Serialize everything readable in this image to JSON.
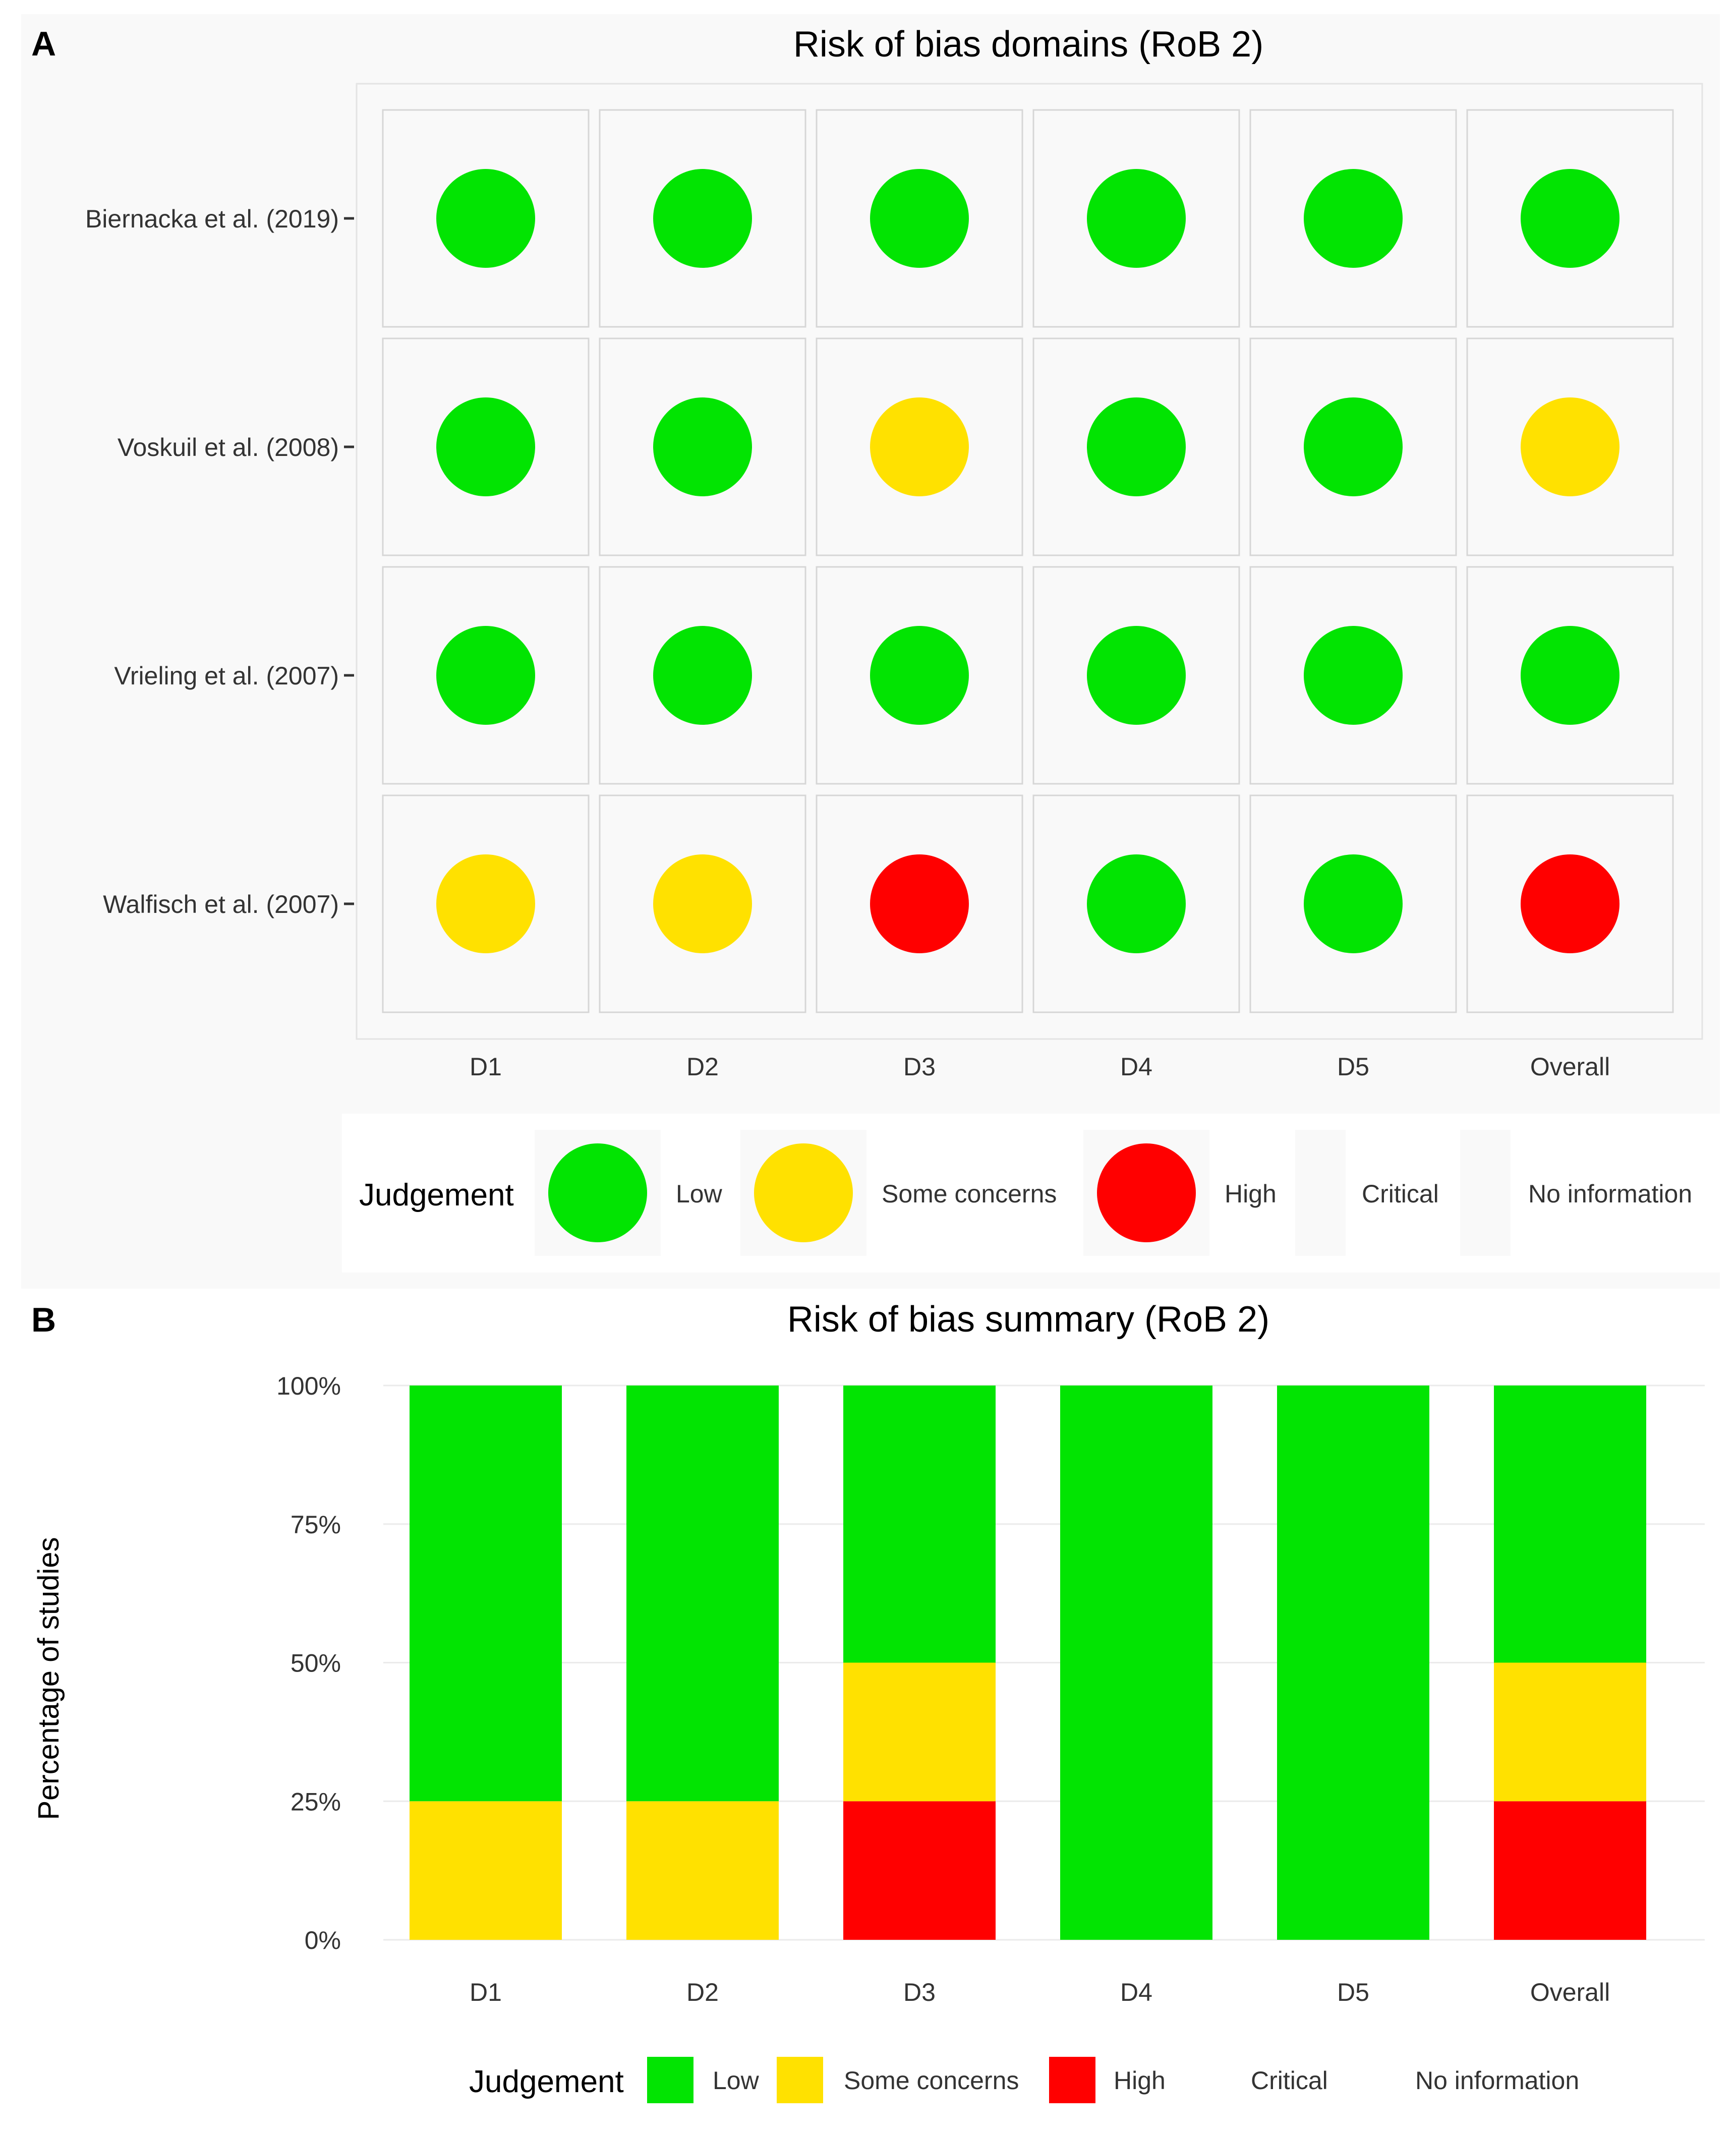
{
  "panel_a": {
    "label": "A",
    "chart_data": {
      "type": "heatmap",
      "title": "Risk of bias domains (RoB 2)",
      "columns": [
        "D1",
        "D2",
        "D3",
        "D4",
        "D5",
        "Overall"
      ],
      "rows": [
        {
          "study": "Biernacka et al. (2019)",
          "judgements": [
            "Low",
            "Low",
            "Low",
            "Low",
            "Low",
            "Low"
          ]
        },
        {
          "study": "Voskuil et al. (2008)",
          "judgements": [
            "Low",
            "Low",
            "Some concerns",
            "Low",
            "Low",
            "Some concerns"
          ]
        },
        {
          "study": "Vrieling et al. (2007)",
          "judgements": [
            "Low",
            "Low",
            "Low",
            "Low",
            "Low",
            "Low"
          ]
        },
        {
          "study": "Walfisch et al. (2007)",
          "judgements": [
            "Some concerns",
            "Some concerns",
            "High",
            "Low",
            "Low",
            "High"
          ]
        }
      ],
      "legend_title": "Judgement",
      "legend": [
        "Low",
        "Some concerns",
        "High",
        "Critical",
        "No information"
      ],
      "legend_placement": "bottom"
    }
  },
  "panel_b": {
    "label": "B",
    "chart_data": {
      "type": "bar",
      "stacked": true,
      "title": "Risk of bias summary (RoB 2)",
      "ylabel": "Percentage of studies",
      "categories": [
        "D1",
        "D2",
        "D3",
        "D4",
        "D5",
        "Overall"
      ],
      "yticks": [
        "0%",
        "25%",
        "50%",
        "75%",
        "100%"
      ],
      "ylim": [
        0,
        100
      ],
      "series": [
        {
          "name": "High",
          "values": [
            0,
            0,
            25,
            0,
            0,
            25
          ]
        },
        {
          "name": "Some concerns",
          "values": [
            25,
            25,
            25,
            0,
            0,
            25
          ]
        },
        {
          "name": "Low",
          "values": [
            75,
            75,
            50,
            100,
            100,
            50
          ]
        }
      ],
      "legend_title": "Judgement",
      "legend": [
        "Low",
        "Some concerns",
        "High",
        "Critical",
        "No information"
      ],
      "legend_placement": "bottom"
    }
  },
  "colors": {
    "Low": "#02e402",
    "Some concerns": "#ffe100",
    "High": "#ff0000",
    "Critical": "#820000",
    "No information": "#4ea1f7",
    "panel_bg": "#f9f9f9",
    "tile_border": "#d6d6d6",
    "text": "#333333"
  }
}
